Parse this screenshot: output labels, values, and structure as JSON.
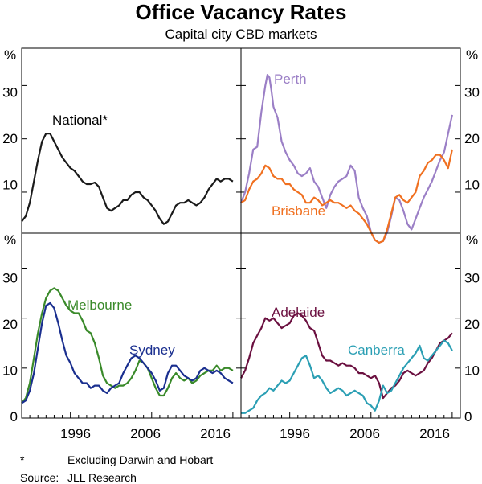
{
  "chart_data": {
    "type": "line",
    "title": "Office Vacancy Rates",
    "subtitle": "Capital city CBD markets",
    "unit_label": "%",
    "x_range": [
      1990,
      2017
    ],
    "x_ticks": [
      1996,
      2006,
      2016
    ],
    "y_range": [
      0,
      35
    ],
    "y_ticks": [
      0,
      10,
      20,
      30
    ],
    "y_tick_labels": {
      "top_left": [
        "10",
        "20",
        "30"
      ],
      "top_right": [
        "10",
        "20",
        "30"
      ],
      "bottom_left": [
        "0",
        "10",
        "20",
        "30"
      ],
      "bottom_right": [
        "0",
        "10",
        "20",
        "30"
      ]
    },
    "panels": [
      {
        "id": "top-left",
        "series": [
          {
            "name": "National*",
            "color": "#1a1a1a",
            "x": [
              1990.0,
              1990.5,
              1991.0,
              1991.5,
              1992.0,
              1992.5,
              1993.0,
              1993.25,
              1993.5,
              1994.0,
              1994.5,
              1995.0,
              1995.5,
              1996.0,
              1996.5,
              1997.0,
              1997.5,
              1998.0,
              1998.5,
              1999.0,
              1999.5,
              2000.0,
              2000.5,
              2001.0,
              2001.5,
              2002.0,
              2002.5,
              2003.0,
              2003.5,
              2004.0,
              2004.5,
              2005.0,
              2005.5,
              2006.0,
              2006.5,
              2007.0,
              2007.5,
              2008.0,
              2008.5,
              2009.0,
              2009.5,
              2010.0,
              2010.5,
              2011.0,
              2011.5,
              2012.0,
              2012.5,
              2013.0,
              2013.5,
              2014.0,
              2014.5,
              2015.0,
              2015.5,
              2016.0
            ],
            "y": [
              4.5,
              5.5,
              8.0,
              12.0,
              16.0,
              19.5,
              21.0,
              21.0,
              21.0,
              19.5,
              18.0,
              16.5,
              15.5,
              14.5,
              14.0,
              13.0,
              12.0,
              11.5,
              11.5,
              11.8,
              11.0,
              9.0,
              7.0,
              6.5,
              7.0,
              7.5,
              8.5,
              8.5,
              9.5,
              10.0,
              10.0,
              9.0,
              8.5,
              7.5,
              6.5,
              5.0,
              4.0,
              4.5,
              6.0,
              7.5,
              8.0,
              8.0,
              8.5,
              8.0,
              7.5,
              8.0,
              9.0,
              10.5,
              11.5,
              12.5,
              12.0,
              12.5,
              12.5,
              12.0
            ]
          }
        ]
      },
      {
        "id": "top-right",
        "series": [
          {
            "name": "Perth",
            "color": "#9b7fc6",
            "x": [
              1990.0,
              1990.5,
              1991.0,
              1991.5,
              1992.0,
              1992.5,
              1993.0,
              1993.25,
              1993.5,
              1993.75,
              1994.0,
              1994.5,
              1995.0,
              1995.5,
              1996.0,
              1996.5,
              1997.0,
              1997.5,
              1998.0,
              1998.5,
              1999.0,
              1999.5,
              2000.0,
              2000.5,
              2001.0,
              2001.5,
              2002.0,
              2002.5,
              2003.0,
              2003.5,
              2004.0,
              2004.5,
              2005.0,
              2005.5,
              2006.0,
              2006.5,
              2007.0,
              2007.5,
              2008.0,
              2008.5,
              2009.0,
              2009.5,
              2010.0,
              2010.5,
              2011.0,
              2011.5,
              2012.0,
              2012.5,
              2013.0,
              2013.5,
              2014.0,
              2014.5,
              2015.0,
              2015.5,
              2016.0
            ],
            "y": [
              8.0,
              10.0,
              13.5,
              18.0,
              18.5,
              25.0,
              30.0,
              32.0,
              31.5,
              29.0,
              26.0,
              24.0,
              19.5,
              17.5,
              16.0,
              15.0,
              13.5,
              13.0,
              13.5,
              14.5,
              12.0,
              11.0,
              9.0,
              7.0,
              9.5,
              11.0,
              12.0,
              12.5,
              13.0,
              15.0,
              14.0,
              9.0,
              7.0,
              5.5,
              2.5,
              1.0,
              0.5,
              0.8,
              2.5,
              5.5,
              9.0,
              8.5,
              6.5,
              4.0,
              3.0,
              5.0,
              7.0,
              9.0,
              10.5,
              12.0,
              14.0,
              16.0,
              17.5,
              21.0,
              24.5
            ]
          },
          {
            "name": "Brisbane",
            "color": "#f07020",
            "x": [
              1990.0,
              1990.5,
              1991.0,
              1991.5,
              1992.0,
              1992.5,
              1993.0,
              1993.5,
              1994.0,
              1994.5,
              1995.0,
              1995.5,
              1996.0,
              1996.5,
              1997.0,
              1997.5,
              1998.0,
              1998.5,
              1999.0,
              1999.5,
              2000.0,
              2000.5,
              2001.0,
              2001.5,
              2002.0,
              2002.5,
              2003.0,
              2003.5,
              2004.0,
              2004.5,
              2005.0,
              2005.5,
              2006.0,
              2006.5,
              2007.0,
              2007.5,
              2008.0,
              2008.5,
              2009.0,
              2009.5,
              2010.0,
              2010.5,
              2011.0,
              2011.5,
              2012.0,
              2012.5,
              2013.0,
              2013.5,
              2014.0,
              2014.5,
              2015.0,
              2015.5,
              2016.0
            ],
            "y": [
              8.0,
              8.5,
              10.5,
              12.0,
              12.5,
              13.5,
              15.0,
              14.5,
              13.0,
              12.5,
              12.5,
              11.5,
              11.5,
              10.5,
              10.0,
              9.5,
              8.0,
              8.0,
              9.0,
              8.5,
              7.5,
              8.0,
              8.5,
              8.0,
              8.0,
              7.5,
              7.0,
              7.5,
              6.5,
              6.0,
              5.0,
              4.0,
              2.5,
              1.0,
              0.5,
              0.8,
              3.0,
              6.0,
              9.0,
              9.5,
              8.5,
              8.0,
              9.0,
              10.0,
              13.0,
              14.0,
              15.5,
              16.0,
              17.0,
              17.0,
              16.0,
              14.5,
              18.0
            ]
          }
        ]
      },
      {
        "id": "bottom-left",
        "series": [
          {
            "name": "Melbourne",
            "color": "#3a8a2a",
            "x": [
              1990.0,
              1990.5,
              1991.0,
              1991.5,
              1992.0,
              1992.5,
              1993.0,
              1993.5,
              1994.0,
              1994.5,
              1995.0,
              1995.5,
              1996.0,
              1996.5,
              1997.0,
              1997.5,
              1998.0,
              1998.5,
              1999.0,
              1999.5,
              2000.0,
              2000.5,
              2001.0,
              2001.5,
              2002.0,
              2002.5,
              2003.0,
              2003.5,
              2004.0,
              2004.5,
              2005.0,
              2005.5,
              2006.0,
              2006.5,
              2007.0,
              2007.5,
              2008.0,
              2008.5,
              2009.0,
              2009.5,
              2010.0,
              2010.5,
              2011.0,
              2011.5,
              2012.0,
              2012.5,
              2013.0,
              2013.5,
              2014.0,
              2014.5,
              2015.0,
              2015.5,
              2016.0
            ],
            "y": [
              3.0,
              4.0,
              7.0,
              12.0,
              17.0,
              21.0,
              24.0,
              25.5,
              26.0,
              25.5,
              24.0,
              22.5,
              21.5,
              21.0,
              21.0,
              19.5,
              17.5,
              17.0,
              15.0,
              12.0,
              8.5,
              7.0,
              6.5,
              6.0,
              6.5,
              6.5,
              7.0,
              8.0,
              9.5,
              11.5,
              11.0,
              10.0,
              8.0,
              6.0,
              4.5,
              4.5,
              6.0,
              8.0,
              9.0,
              8.0,
              7.5,
              8.0,
              7.0,
              7.5,
              8.5,
              9.0,
              9.5,
              9.5,
              10.5,
              9.5,
              10.0,
              10.0,
              9.5
            ]
          },
          {
            "name": "Sydney",
            "color": "#1a2f8f",
            "x": [
              1990.0,
              1990.5,
              1991.0,
              1991.5,
              1992.0,
              1992.5,
              1993.0,
              1993.5,
              1994.0,
              1994.5,
              1995.0,
              1995.5,
              1996.0,
              1996.5,
              1997.0,
              1997.5,
              1998.0,
              1998.5,
              1999.0,
              1999.5,
              2000.0,
              2000.5,
              2001.0,
              2001.5,
              2002.0,
              2002.5,
              2003.0,
              2003.5,
              2004.0,
              2004.5,
              2005.0,
              2005.5,
              2006.0,
              2006.5,
              2007.0,
              2007.5,
              2008.0,
              2008.5,
              2009.0,
              2009.5,
              2010.0,
              2010.5,
              2011.0,
              2011.5,
              2012.0,
              2012.5,
              2013.0,
              2013.5,
              2014.0,
              2014.5,
              2015.0,
              2015.5,
              2016.0
            ],
            "y": [
              3.0,
              3.5,
              5.5,
              9.0,
              14.0,
              19.0,
              22.5,
              23.0,
              22.0,
              19.0,
              15.5,
              12.5,
              11.0,
              9.0,
              8.0,
              7.0,
              7.0,
              6.0,
              6.5,
              6.5,
              5.5,
              5.0,
              6.0,
              6.5,
              7.0,
              9.0,
              10.5,
              12.0,
              12.5,
              12.0,
              11.0,
              10.0,
              9.0,
              7.5,
              5.5,
              6.0,
              9.0,
              10.5,
              10.5,
              9.5,
              8.5,
              8.0,
              7.5,
              8.0,
              9.5,
              10.0,
              9.5,
              9.0,
              9.5,
              9.0,
              8.0,
              7.5,
              7.0
            ]
          }
        ]
      },
      {
        "id": "bottom-right",
        "series": [
          {
            "name": "Adelaide",
            "color": "#6b1040",
            "x": [
              1990.0,
              1990.5,
              1991.0,
              1991.5,
              1992.0,
              1992.5,
              1993.0,
              1993.5,
              1994.0,
              1994.5,
              1995.0,
              1995.5,
              1996.0,
              1996.5,
              1997.0,
              1997.5,
              1998.0,
              1998.5,
              1999.0,
              1999.5,
              2000.0,
              2000.5,
              2001.0,
              2001.5,
              2002.0,
              2002.5,
              2003.0,
              2003.5,
              2004.0,
              2004.5,
              2005.0,
              2005.5,
              2006.0,
              2006.5,
              2007.0,
              2007.5,
              2008.0,
              2008.5,
              2009.0,
              2009.5,
              2010.0,
              2010.5,
              2011.0,
              2011.5,
              2012.0,
              2012.5,
              2013.0,
              2013.5,
              2014.0,
              2014.5,
              2015.0,
              2015.5,
              2016.0
            ],
            "y": [
              8.0,
              9.5,
              12.0,
              15.0,
              16.5,
              18.0,
              20.0,
              19.5,
              20.0,
              19.0,
              18.0,
              18.5,
              19.0,
              20.5,
              21.0,
              20.5,
              19.5,
              18.0,
              17.5,
              15.0,
              12.5,
              11.5,
              11.5,
              11.0,
              10.5,
              11.0,
              10.5,
              10.5,
              10.0,
              9.0,
              9.0,
              8.5,
              8.0,
              8.5,
              7.0,
              4.0,
              5.0,
              6.0,
              6.5,
              7.5,
              9.0,
              9.5,
              9.0,
              8.5,
              9.0,
              9.5,
              11.0,
              12.0,
              13.5,
              15.0,
              15.5,
              16.0,
              17.0
            ]
          },
          {
            "name": "Canberra",
            "color": "#2b9fb4",
            "x": [
              1990.0,
              1990.5,
              1991.0,
              1991.5,
              1992.0,
              1992.5,
              1993.0,
              1993.5,
              1994.0,
              1994.5,
              1995.0,
              1995.5,
              1996.0,
              1996.5,
              1997.0,
              1997.5,
              1998.0,
              1998.5,
              1999.0,
              1999.5,
              2000.0,
              2000.5,
              2001.0,
              2001.5,
              2002.0,
              2002.5,
              2003.0,
              2003.5,
              2004.0,
              2004.5,
              2005.0,
              2005.5,
              2006.0,
              2006.5,
              2007.0,
              2007.5,
              2008.0,
              2008.5,
              2009.0,
              2009.5,
              2010.0,
              2010.5,
              2011.0,
              2011.5,
              2012.0,
              2012.5,
              2013.0,
              2013.5,
              2014.0,
              2014.5,
              2015.0,
              2015.5,
              2016.0
            ],
            "y": [
              1.0,
              1.0,
              1.5,
              2.0,
              3.5,
              4.5,
              5.0,
              6.0,
              5.5,
              6.5,
              7.5,
              7.0,
              7.5,
              9.0,
              10.5,
              12.0,
              12.5,
              10.5,
              8.0,
              8.5,
              7.5,
              6.0,
              5.0,
              5.5,
              6.0,
              5.5,
              4.5,
              5.0,
              5.5,
              5.0,
              4.5,
              3.0,
              2.5,
              1.5,
              3.5,
              6.5,
              5.0,
              5.5,
              7.0,
              8.5,
              10.0,
              11.0,
              12.0,
              13.0,
              14.5,
              12.0,
              11.5,
              12.5,
              13.5,
              14.5,
              15.5,
              15.0,
              13.5
            ]
          }
        ]
      }
    ],
    "footnotes": [
      {
        "marker": "*",
        "text": "Excluding Darwin and Hobart"
      },
      {
        "marker": "Source:",
        "text": "JLL Research"
      }
    ]
  }
}
